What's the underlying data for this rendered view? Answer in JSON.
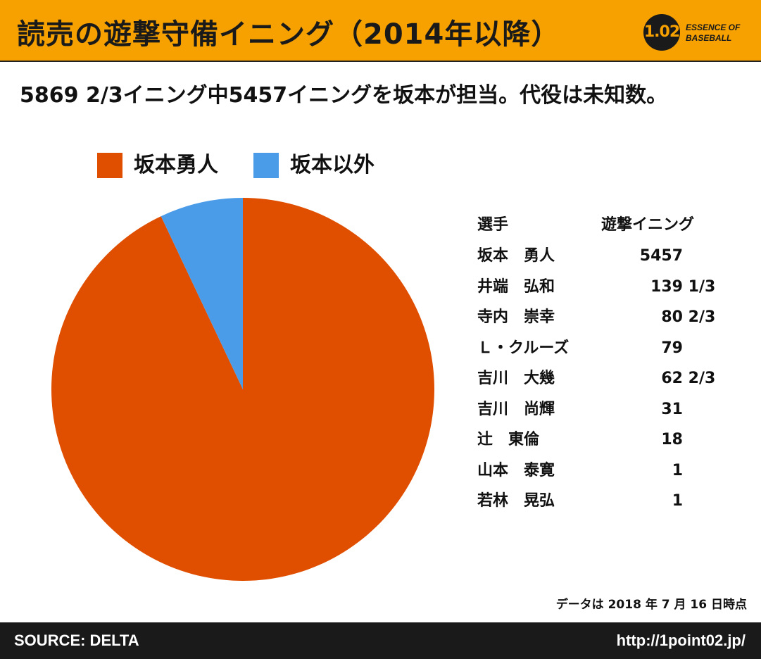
{
  "header": {
    "title": "読売の遊撃守備イニング（2014年以降）",
    "logo_mark": "1.02",
    "logo_line1": "ESSENCE OF",
    "logo_line2": "BASEBALL"
  },
  "subtitle": "5869 2/3イニング中5457イニングを坂本が担当。代役は未知数。",
  "colors": {
    "header_bg": "#f6a100",
    "sakamoto": "#e04e00",
    "others": "#4a9be8",
    "footer_bg": "#1a1a1a"
  },
  "chart_data": {
    "type": "pie",
    "legend_position": "top-left",
    "slices": [
      {
        "label": "坂本勇人",
        "value": 5457
      },
      {
        "label": "坂本以外",
        "value": 412.67
      }
    ]
  },
  "table": {
    "headers": {
      "name": "選手",
      "value": "遊撃イニング"
    },
    "rows": [
      {
        "name": "坂本　勇人",
        "value": "5457"
      },
      {
        "name": "井端　弘和",
        "value": "139 1/3"
      },
      {
        "name": "寺内　崇幸",
        "value": "80 2/3"
      },
      {
        "name": "Ｌ・クルーズ",
        "value": "79"
      },
      {
        "name": "吉川　大幾",
        "value": "62 2/3"
      },
      {
        "name": "吉川　尚輝",
        "value": "31"
      },
      {
        "name": "辻　東倫",
        "value": "18"
      },
      {
        "name": "山本　泰寛",
        "value": "1"
      },
      {
        "name": "若林　晃弘",
        "value": "1"
      }
    ]
  },
  "note": "データは 2018 年 7 月 16 日時点",
  "footer": {
    "source": "SOURCE: DELTA",
    "url": "http://1point02.jp/"
  }
}
